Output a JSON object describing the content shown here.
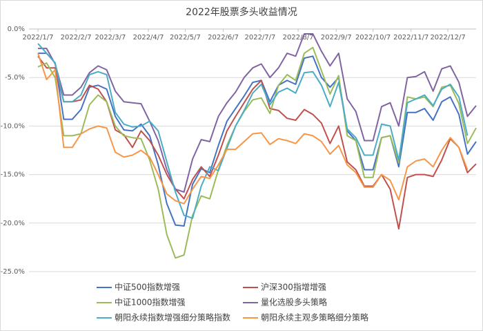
{
  "chart_data": {
    "type": "line",
    "title": "2022年股票多头收益情况",
    "x": [
      "2022/1/7",
      "2022/1/14",
      "2022/1/21",
      "2022/1/28",
      "2022/2/4",
      "2022/2/11",
      "2022/2/18",
      "2022/2/25",
      "2022/3/4",
      "2022/3/11",
      "2022/3/18",
      "2022/3/25",
      "2022/4/1",
      "2022/4/8",
      "2022/4/15",
      "2022/4/22",
      "2022/4/29",
      "2022/5/6",
      "2022/5/13",
      "2022/5/20",
      "2022/5/27",
      "2022/6/3",
      "2022/6/10",
      "2022/6/17",
      "2022/6/24",
      "2022/7/1",
      "2022/7/8",
      "2022/7/15",
      "2022/7/22",
      "2022/7/29",
      "2022/8/5",
      "2022/8/12",
      "2022/8/19",
      "2022/8/26",
      "2022/9/2",
      "2022/9/9",
      "2022/9/16",
      "2022/9/23",
      "2022/9/30",
      "2022/10/7",
      "2022/10/14",
      "2022/10/21",
      "2022/10/28",
      "2022/11/4",
      "2022/11/11",
      "2022/11/18",
      "2022/11/25",
      "2022/12/2",
      "2022/12/9",
      "2022/12/16",
      "2022/12/23",
      "2022/12/30"
    ],
    "xlim": [
      "2022/1/7",
      "2022/12/30"
    ],
    "xticks": [
      "2022/1/7",
      "2022/2/7",
      "2022/3/7",
      "2022/4/7",
      "2022/5/7",
      "2022/6/7",
      "2022/7/7",
      "2022/8/7",
      "2022/9/7",
      "2022/10/7",
      "2022/11/7",
      "2022/12/7"
    ],
    "ylim": [
      -25,
      0
    ],
    "yticks": [
      {
        "value": 0,
        "label": "0.0%"
      },
      {
        "value": -5,
        "label": "-5.0%"
      },
      {
        "value": -10,
        "label": "-10.0%"
      },
      {
        "value": -15,
        "label": "-15.0%"
      },
      {
        "value": -20,
        "label": "-20.0%"
      },
      {
        "value": -25,
        "label": "-25.0%"
      }
    ],
    "grid": true,
    "legend": "bottom",
    "series": [
      {
        "name": "中证500指数增强",
        "color": "#4472c4",
        "values": [
          -2.5,
          -2.5,
          -3.5,
          -9.3,
          -9.3,
          -8.3,
          -6.0,
          -5.8,
          -6.2,
          -9.0,
          -10.4,
          -10.5,
          -9.8,
          -11.0,
          -14,
          -18.0,
          -20.2,
          -20.3,
          -16,
          -14.4,
          -14.8,
          -12,
          -9.5,
          -8.2,
          -6.9,
          -5.5,
          -5.3,
          -7.5,
          -5.8,
          -5.3,
          -5.7,
          -3.0,
          -2.8,
          -5.0,
          -6.0,
          -5.0,
          -10.5,
          -11.5,
          -14.5,
          -14.5,
          -11.2,
          -11.0,
          -14.2,
          -8.6,
          -8.6,
          -8.2,
          -9.4,
          -7.5,
          -7.0,
          -8.8,
          -12.9,
          -11.6
        ]
      },
      {
        "name": "沪深300指增增强",
        "color": "#c0504d",
        "values": [
          -2.8,
          -4.0,
          -4.0,
          -7.5,
          -7.5,
          -7.3,
          -5.8,
          -6.2,
          -7.5,
          -10.4,
          -10.9,
          -12.2,
          -10.5,
          -11.5,
          -13.0,
          -15.0,
          -16.5,
          -17.5,
          -15.5,
          -14.2,
          -15.2,
          -13,
          -10.5,
          -9.0,
          -7.6,
          -6.2,
          -5.3,
          -8.2,
          -8.4,
          -9.2,
          -9.4,
          -8.3,
          -8.8,
          -9.7,
          -11.8,
          -10.0,
          -13.7,
          -14.5,
          -16.2,
          -16.2,
          -15.0,
          -16.5,
          -20.6,
          -15.3,
          -15.0,
          -15.0,
          -15.2,
          -13.5,
          -11.3,
          -12.2,
          -14.8,
          -13.9
        ]
      },
      {
        "name": "中证1000指数增强",
        "color": "#9bbb59",
        "values": [
          -3.9,
          -3.5,
          -5.0,
          -11.0,
          -11.0,
          -10.8,
          -7.8,
          -6.8,
          -7.5,
          -10.0,
          -11.0,
          -11.2,
          -11.3,
          -13.5,
          -16.5,
          -21.2,
          -23.6,
          -23.3,
          -19.2,
          -17.2,
          -17.5,
          -14.5,
          -12.0,
          -10.0,
          -8.5,
          -7.3,
          -7.1,
          -8.7,
          -5.8,
          -4.7,
          -5.3,
          -2.5,
          -1.9,
          -4.3,
          -6.7,
          -4.8,
          -11.0,
          -11.5,
          -15.3,
          -15.3,
          -11.2,
          -11.0,
          -13.8,
          -7.0,
          -7.2,
          -7.0,
          -8.0,
          -6.0,
          -5.8,
          -7.7,
          -11.8,
          -10.2
        ]
      },
      {
        "name": "量化选股多头策略",
        "color": "#8064a2",
        "values": [
          -2.0,
          -2.0,
          -3.6,
          -6.8,
          -6.8,
          -6.0,
          -4.5,
          -3.8,
          -4.2,
          -6.4,
          -7.5,
          -7.6,
          -7.7,
          -9.5,
          -11.5,
          -14.5,
          -16.5,
          -16.8,
          -13.4,
          -11.4,
          -11.6,
          -9.0,
          -7.6,
          -6.5,
          -5.0,
          -4.0,
          -3.6,
          -5.0,
          -4.0,
          -2.5,
          -2.8,
          -0.5,
          -0.5,
          -2.3,
          -3.8,
          -2.5,
          -7.2,
          -8.5,
          -11.5,
          -11.5,
          -8.0,
          -7.6,
          -10.0,
          -5.0,
          -4.9,
          -4.4,
          -6.4,
          -4.1,
          -3.8,
          -5.5,
          -9.0,
          -7.9
        ]
      },
      {
        "name": "朝阳永续指数增强细分策略指数",
        "color": "#4bacc6",
        "values": [
          -1.5,
          -2.5,
          -3.5,
          -7.5,
          -7.5,
          -6.8,
          -4.7,
          -4.4,
          -4.7,
          -8.6,
          -9.8,
          -10.1,
          -10.0,
          -9.5,
          -10.5,
          -13.7,
          -16.8,
          -19.2,
          -19.5,
          -16.2,
          -14.2,
          -14.6,
          -12.3,
          -10.0,
          -8.4,
          -6.6,
          -5.7,
          -7.8,
          -6.5,
          -6.1,
          -6.6,
          -4.5,
          -4.4,
          -5.8,
          -8.0,
          -5.5,
          -10.3,
          -11.2,
          -13.0,
          -13.0,
          -9.8,
          -10.0,
          -13.5,
          -7.6,
          -7.2,
          -6.8,
          -7.9,
          -6.2,
          -5.7,
          -7.0,
          -11.0,
          null
        ]
      },
      {
        "name": "朝阳永续主观多策略细分策略",
        "color": "#f79646",
        "values": [
          -2.5,
          -5.2,
          -4.2,
          -12.2,
          -12.2,
          -10.8,
          -10.3,
          -10.0,
          -10.2,
          -12.7,
          -13.2,
          -13.0,
          -12.5,
          -13.2,
          -15.0,
          -17.0,
          -17.7,
          -18.0,
          -16.5,
          -15.2,
          -15.4,
          -14.0,
          -12.4,
          -12.4,
          -11.6,
          -10.8,
          -10.7,
          -11.9,
          -11.3,
          -11.5,
          -11.8,
          -10.8,
          -11.0,
          -11.6,
          -12.9,
          -12.0,
          -14.0,
          -14.8,
          -16.3,
          -16.3,
          -15.0,
          -15.6,
          -17.6,
          -14.2,
          -13.6,
          -13.4,
          -14.2,
          -12.5,
          -11.2,
          -12.2,
          -14.5,
          null
        ]
      }
    ]
  }
}
